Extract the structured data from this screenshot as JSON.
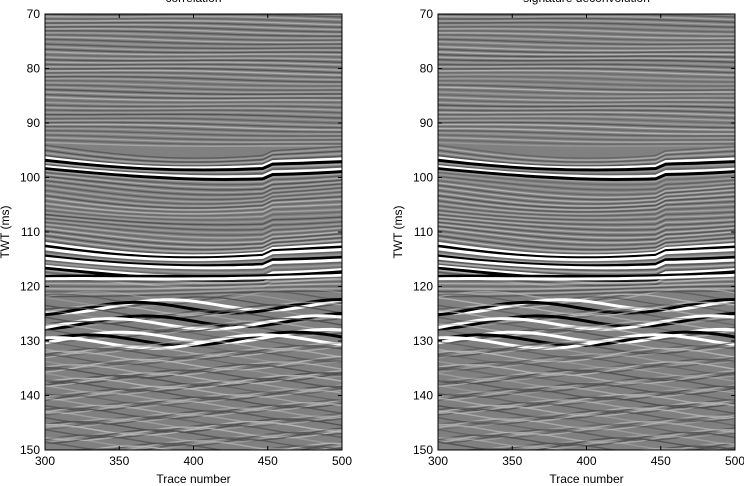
{
  "chart_data": [
    {
      "type": "image",
      "title": "correlation",
      "xlabel": "Trace number",
      "ylabel": "TWT (ms)",
      "xlim": [
        300,
        500
      ],
      "xticks": [
        300,
        350,
        400,
        450,
        500
      ],
      "ylim": [
        70,
        150
      ],
      "yticks": [
        70,
        80,
        90,
        100,
        110,
        120,
        130,
        140,
        150
      ],
      "y_reversed": true,
      "colormap": "gray"
    },
    {
      "type": "image",
      "title": "signature deconvolution",
      "xlabel": "Trace number",
      "ylabel": "TWT (ms)",
      "xlim": [
        300,
        500
      ],
      "xticks": [
        300,
        350,
        400,
        450,
        500
      ],
      "ylim": [
        70,
        150
      ],
      "yticks": [
        70,
        80,
        90,
        100,
        110,
        120,
        130,
        140,
        150
      ],
      "y_reversed": true,
      "colormap": "gray"
    }
  ]
}
